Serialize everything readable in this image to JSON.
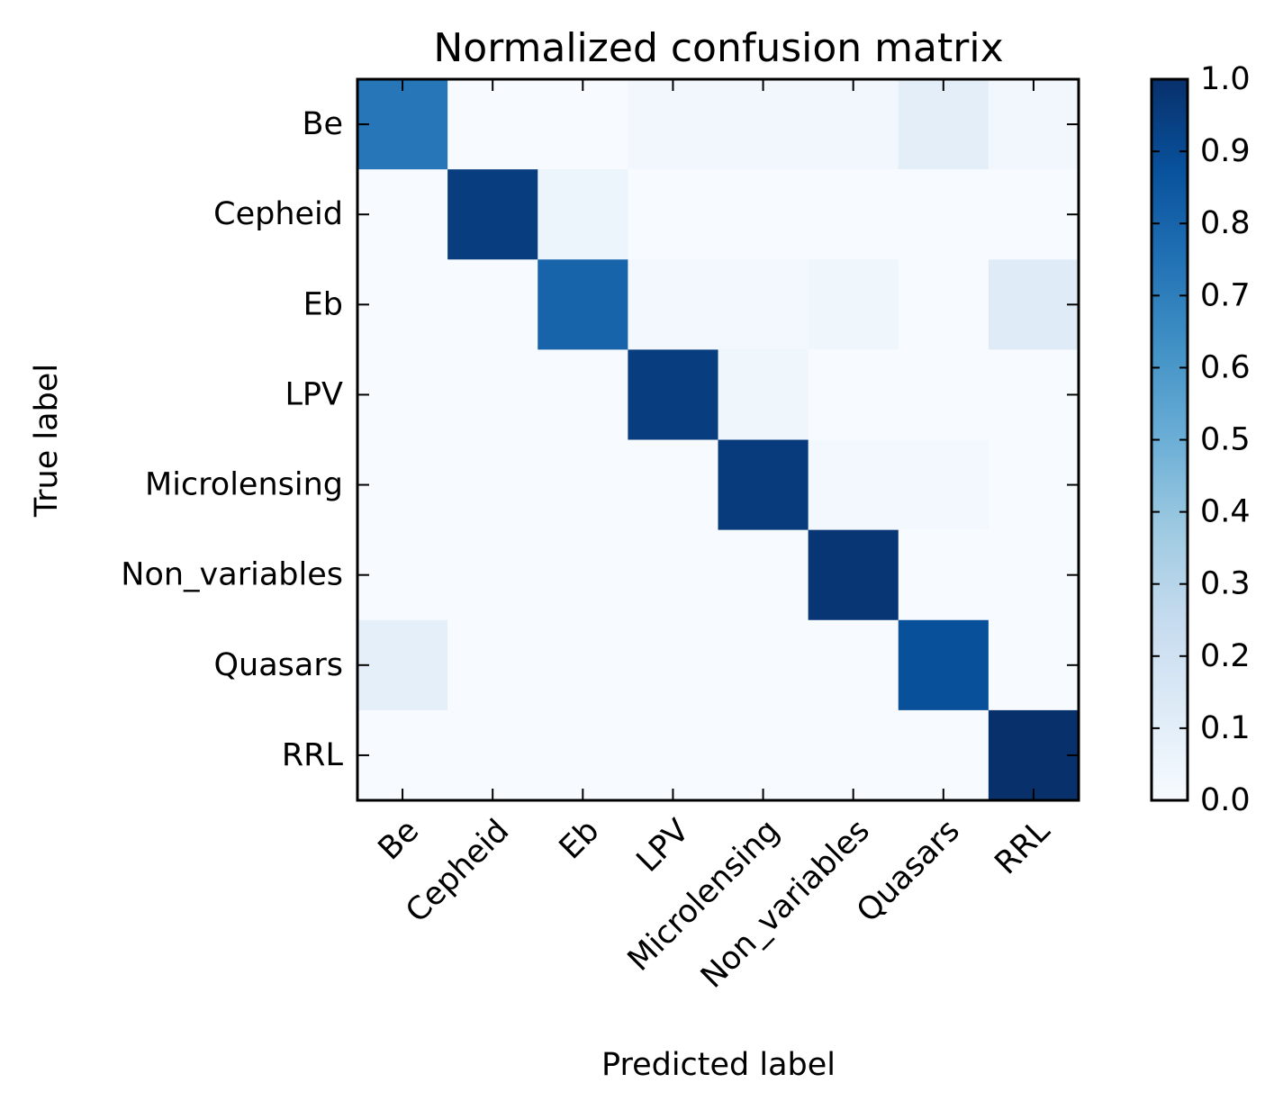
{
  "chart_data": {
    "type": "heatmap",
    "title": "Normalized confusion matrix",
    "xlabel": "Predicted label",
    "ylabel": "True label",
    "true_labels": [
      "Be",
      "Cepheid",
      "Eb",
      "LPV",
      "Microlensing",
      "Non_variables",
      "Quasars",
      "RRL"
    ],
    "predicted_labels": [
      "Be",
      "Cepheid",
      "Eb",
      "LPV",
      "Microlensing",
      "Non_variables",
      "Quasars",
      "RRL"
    ],
    "matrix": [
      [
        0.73,
        0.0,
        0.0,
        0.03,
        0.03,
        0.03,
        0.1,
        0.03
      ],
      [
        0.0,
        0.95,
        0.05,
        0.0,
        0.0,
        0.0,
        0.0,
        0.0
      ],
      [
        0.0,
        0.0,
        0.8,
        0.02,
        0.02,
        0.04,
        0.0,
        0.12
      ],
      [
        0.0,
        0.0,
        0.0,
        0.95,
        0.04,
        0.0,
        0.0,
        0.0
      ],
      [
        0.0,
        0.0,
        0.0,
        0.0,
        0.96,
        0.02,
        0.02,
        0.0
      ],
      [
        0.0,
        0.0,
        0.0,
        0.0,
        0.0,
        0.98,
        0.0,
        0.0
      ],
      [
        0.09,
        0.0,
        0.0,
        0.0,
        0.0,
        0.0,
        0.88,
        0.0
      ],
      [
        0.0,
        0.0,
        0.0,
        0.0,
        0.0,
        0.0,
        0.0,
        1.0
      ]
    ],
    "colorbar": {
      "range": [
        0.0,
        1.0
      ],
      "ticks": [
        "0.0",
        "0.1",
        "0.2",
        "0.3",
        "0.4",
        "0.5",
        "0.6",
        "0.7",
        "0.8",
        "0.9",
        "1.0"
      ],
      "colormap": "Blues",
      "low_color": "#f7fbff",
      "high_color": "#08306b"
    },
    "grid": false
  }
}
